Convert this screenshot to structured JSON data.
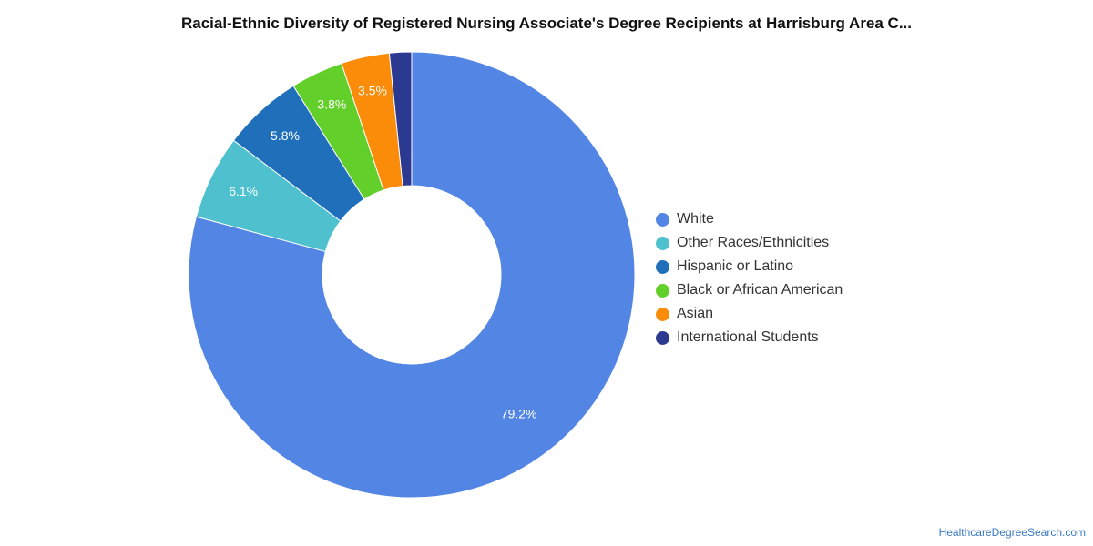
{
  "title": "Racial-Ethnic Diversity of Registered Nursing Associate's Degree Recipients at Harrisburg Area C...",
  "source": "HealthcareDegreeSearch.com",
  "chart_data": {
    "type": "pie",
    "subtype": "donut",
    "title": "Racial-Ethnic Diversity of Registered Nursing Associate's Degree Recipients at Harrisburg Area C...",
    "legend_position": "right",
    "slices": [
      {
        "label": "White",
        "value": 79.2,
        "display": "79.2%",
        "color": "#5386e4"
      },
      {
        "label": "Other Races/Ethnicities",
        "value": 6.1,
        "display": "6.1%",
        "color": "#4fc1ce"
      },
      {
        "label": "Hispanic or Latino",
        "value": 5.8,
        "display": "5.8%",
        "color": "#1f6fba"
      },
      {
        "label": "Black or African American",
        "value": 3.8,
        "display": "3.8%",
        "color": "#62cf2a"
      },
      {
        "label": "Asian",
        "value": 3.5,
        "display": "3.5%",
        "color": "#fb8c0a"
      },
      {
        "label": "International Students",
        "value": 1.6,
        "display": "",
        "color": "#2b3990"
      }
    ]
  }
}
